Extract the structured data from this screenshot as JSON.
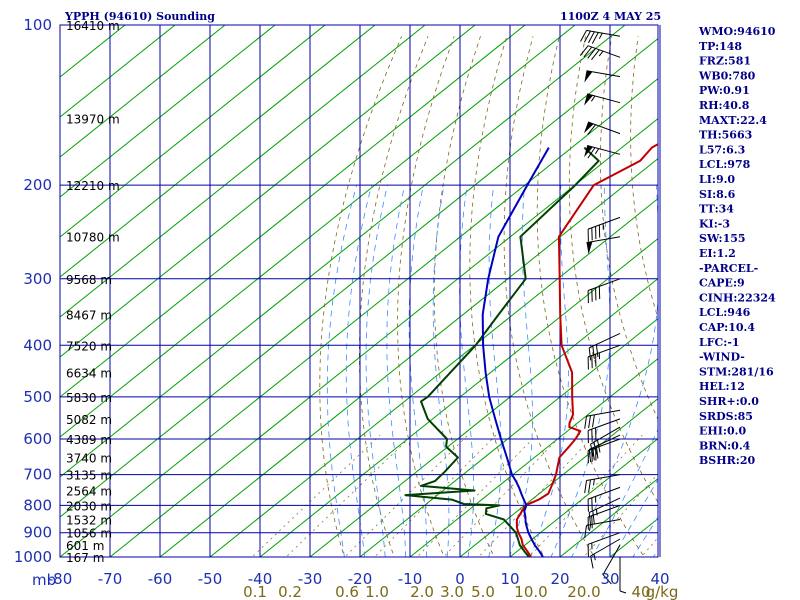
{
  "header": {
    "station": "YPPH (94610) Sounding",
    "time": "1100Z  4 MAY 25"
  },
  "indices": [
    "WMO:94610",
    "TP:148",
    "FRZ:581",
    "WB0:780",
    "PW:0.91",
    "RH:40.8",
    "MAXT:22.4",
    "TH:5663",
    "L57:6.3",
    "LCL:978",
    "LI:9.0",
    "SI:8.6",
    "TT:34",
    "KI:-3",
    "SW:155",
    "EI:1.2",
    "-PARCEL-",
    "CAPE:9",
    "CINH:22324",
    "LCL:946",
    "CAP:10.4",
    "LFC:-1",
    "-WIND-",
    "STM:281/16",
    "HEL:12",
    "SHR+:0.0",
    "SRDS:85",
    "EHI:0.0",
    "BRN:0.4",
    "BSHR:20"
  ],
  "colors": {
    "grid": "#0000aa",
    "isotherm": "#00a000",
    "temperature": "#c00000",
    "dewpoint": "#004000",
    "parcel": "#0000c0",
    "dry_adiabat": "#7a6a18",
    "moist_adiabat": "#3a8cff",
    "text": "#000088"
  },
  "chart_data": {
    "type": "line",
    "title": "YPPH (94610) Sounding",
    "subtitle": "1100Z  4 MAY 25",
    "y_scale": "log",
    "y_unit": "mb",
    "x_unit_label": "mb",
    "ylim": [
      1000,
      100
    ],
    "xlim": [
      -80,
      40
    ],
    "pressure_levels": [
      100,
      200,
      300,
      400,
      500,
      600,
      700,
      800,
      900,
      1000
    ],
    "temperature_ticks": [
      -80,
      -70,
      -60,
      -50,
      -40,
      -30,
      -20,
      -10,
      0,
      10,
      20,
      30,
      40
    ],
    "temperature_tick_labels": [
      "-80",
      "-70",
      "-60",
      "-50",
      "-40",
      "-30",
      "-20",
      "-10",
      "0",
      "10",
      "20",
      "30",
      "40"
    ],
    "mixing_ratio_labels": [
      "0.1",
      "0.2",
      "0.6",
      "1.0",
      "2.0",
      "3.0",
      "5.0",
      "10.0",
      "20.0",
      "40",
      "g/kg"
    ],
    "mixing_ratio_values": [
      0.1,
      0.2,
      0.6,
      1.0,
      2.0,
      3.0,
      5.0,
      10.0,
      20.0,
      40
    ],
    "height_labels": [
      {
        "p": 100,
        "text": "16410 m"
      },
      {
        "p": 150,
        "text": "13970 m"
      },
      {
        "p": 200,
        "text": "12210 m"
      },
      {
        "p": 250,
        "text": "10780 m"
      },
      {
        "p": 300,
        "text": "9568 m"
      },
      {
        "p": 350,
        "text": "8467 m"
      },
      {
        "p": 400,
        "text": "7520 m"
      },
      {
        "p": 450,
        "text": "6634 m"
      },
      {
        "p": 500,
        "text": "5830 m"
      },
      {
        "p": 550,
        "text": "5082 m"
      },
      {
        "p": 600,
        "text": "4389 m"
      },
      {
        "p": 650,
        "text": "3740 m"
      },
      {
        "p": 700,
        "text": "3135 m"
      },
      {
        "p": 750,
        "text": "2564 m"
      },
      {
        "p": 800,
        "text": "2030 m"
      },
      {
        "p": 850,
        "text": "1532 m"
      },
      {
        "p": 900,
        "text": "1056 m"
      },
      {
        "p": 950,
        "text": "601 m"
      },
      {
        "p": 1000,
        "text": "167 m"
      }
    ],
    "series": [
      {
        "name": "Temperature",
        "points": [
          [
            1016,
            15.8
          ],
          [
            1000,
            14.2
          ],
          [
            975,
            12.0
          ],
          [
            950,
            9.6
          ],
          [
            925,
            7.8
          ],
          [
            900,
            5.6
          ],
          [
            880,
            4.0
          ],
          [
            850,
            2.0
          ],
          [
            800,
            0.2
          ],
          [
            780,
            1.4
          ],
          [
            760,
            1.8
          ],
          [
            740,
            0.8
          ],
          [
            700,
            -1.4
          ],
          [
            650,
            -5.0
          ],
          [
            620,
            -5.8
          ],
          [
            600,
            -6.4
          ],
          [
            580,
            -7.4
          ],
          [
            570,
            -10.6
          ],
          [
            560,
            -11.6
          ],
          [
            540,
            -13.0
          ],
          [
            500,
            -17.6
          ],
          [
            450,
            -23.7
          ],
          [
            400,
            -32.6
          ],
          [
            350,
            -40.6
          ],
          [
            300,
            -49.6
          ],
          [
            250,
            -60.3
          ],
          [
            200,
            -66.2
          ],
          [
            180,
            -63.0
          ],
          [
            170,
            -64.0
          ],
          [
            160,
            -62.5
          ],
          [
            150,
            -65.4
          ],
          [
            125,
            -67.0
          ],
          [
            110,
            -67.9
          ],
          [
            100,
            -65.2
          ]
        ]
      },
      {
        "name": "Dewpoint",
        "points": [
          [
            1016,
            15.3
          ],
          [
            1000,
            13.8
          ],
          [
            975,
            11.4
          ],
          [
            950,
            9.0
          ],
          [
            925,
            7.1
          ],
          [
            900,
            5.1
          ],
          [
            850,
            -0.6
          ],
          [
            830,
            -5.6
          ],
          [
            810,
            -6.9
          ],
          [
            800,
            -5.0
          ],
          [
            795,
            -12.5
          ],
          [
            780,
            -16.0
          ],
          [
            765,
            -26.4
          ],
          [
            750,
            -13.7
          ],
          [
            735,
            -25.6
          ],
          [
            720,
            -24.0
          ],
          [
            690,
            -24.4
          ],
          [
            650,
            -25.3
          ],
          [
            620,
            -30.4
          ],
          [
            600,
            -32.1
          ],
          [
            550,
            -41.0
          ],
          [
            510,
            -46.7
          ],
          [
            500,
            -46.5
          ],
          [
            400,
            -49.8
          ],
          [
            350,
            -52.9
          ],
          [
            300,
            -56.4
          ],
          [
            250,
            -68.0
          ],
          [
            200,
            -69.9
          ],
          [
            180,
            -71.3
          ],
          [
            170,
            -77.5
          ]
        ]
      },
      {
        "name": "Parcel",
        "points": [
          [
            1016,
            18.4
          ],
          [
            1000,
            16.6
          ],
          [
            975,
            14.4
          ],
          [
            950,
            12.0
          ],
          [
            925,
            9.8
          ],
          [
            900,
            7.6
          ],
          [
            880,
            6.0
          ],
          [
            860,
            4.4
          ],
          [
            840,
            3.0
          ],
          [
            820,
            1.4
          ],
          [
            800,
            0.4
          ],
          [
            780,
            -1.6
          ],
          [
            760,
            -3.6
          ],
          [
            740,
            -5.6
          ],
          [
            720,
            -7.8
          ],
          [
            700,
            -10.2
          ],
          [
            650,
            -15.5
          ],
          [
            600,
            -21.3
          ],
          [
            550,
            -27.5
          ],
          [
            500,
            -34.2
          ],
          [
            450,
            -41.0
          ],
          [
            400,
            -48.3
          ],
          [
            350,
            -56.1
          ],
          [
            300,
            -63.9
          ],
          [
            250,
            -72.4
          ],
          [
            200,
            -79.5
          ],
          [
            170,
            -84.6
          ]
        ]
      }
    ],
    "wind_barbs": [
      {
        "p": 105,
        "dir": 280,
        "spd": 45
      },
      {
        "p": 115,
        "dir": 290,
        "spd": 45
      },
      {
        "p": 125,
        "dir": 280,
        "spd": 50
      },
      {
        "p": 140,
        "dir": 285,
        "spd": 55
      },
      {
        "p": 160,
        "dir": 290,
        "spd": 60
      },
      {
        "p": 175,
        "dir": 285,
        "spd": 65
      },
      {
        "p": 230,
        "dir": 250,
        "spd": 45
      },
      {
        "p": 250,
        "dir": 260,
        "spd": 50
      },
      {
        "p": 300,
        "dir": 250,
        "spd": 40
      },
      {
        "p": 380,
        "dir": 245,
        "spd": 30
      },
      {
        "p": 400,
        "dir": 250,
        "spd": 35
      },
      {
        "p": 530,
        "dir": 260,
        "spd": 30
      },
      {
        "p": 550,
        "dir": 250,
        "spd": 30
      },
      {
        "p": 570,
        "dir": 240,
        "spd": 30
      },
      {
        "p": 590,
        "dir": 245,
        "spd": 30
      },
      {
        "p": 600,
        "dir": 250,
        "spd": 30
      },
      {
        "p": 700,
        "dir": 260,
        "spd": 25
      },
      {
        "p": 740,
        "dir": 250,
        "spd": 25
      },
      {
        "p": 775,
        "dir": 245,
        "spd": 25
      },
      {
        "p": 800,
        "dir": 250,
        "spd": 20
      },
      {
        "p": 850,
        "dir": 260,
        "spd": 15
      },
      {
        "p": 900,
        "dir": 250,
        "spd": 15
      },
      {
        "p": 925,
        "dir": 240,
        "spd": 15
      },
      {
        "p": 950,
        "dir": 210,
        "spd": 10
      },
      {
        "p": 1000,
        "dir": 180,
        "spd": 5
      }
    ]
  }
}
